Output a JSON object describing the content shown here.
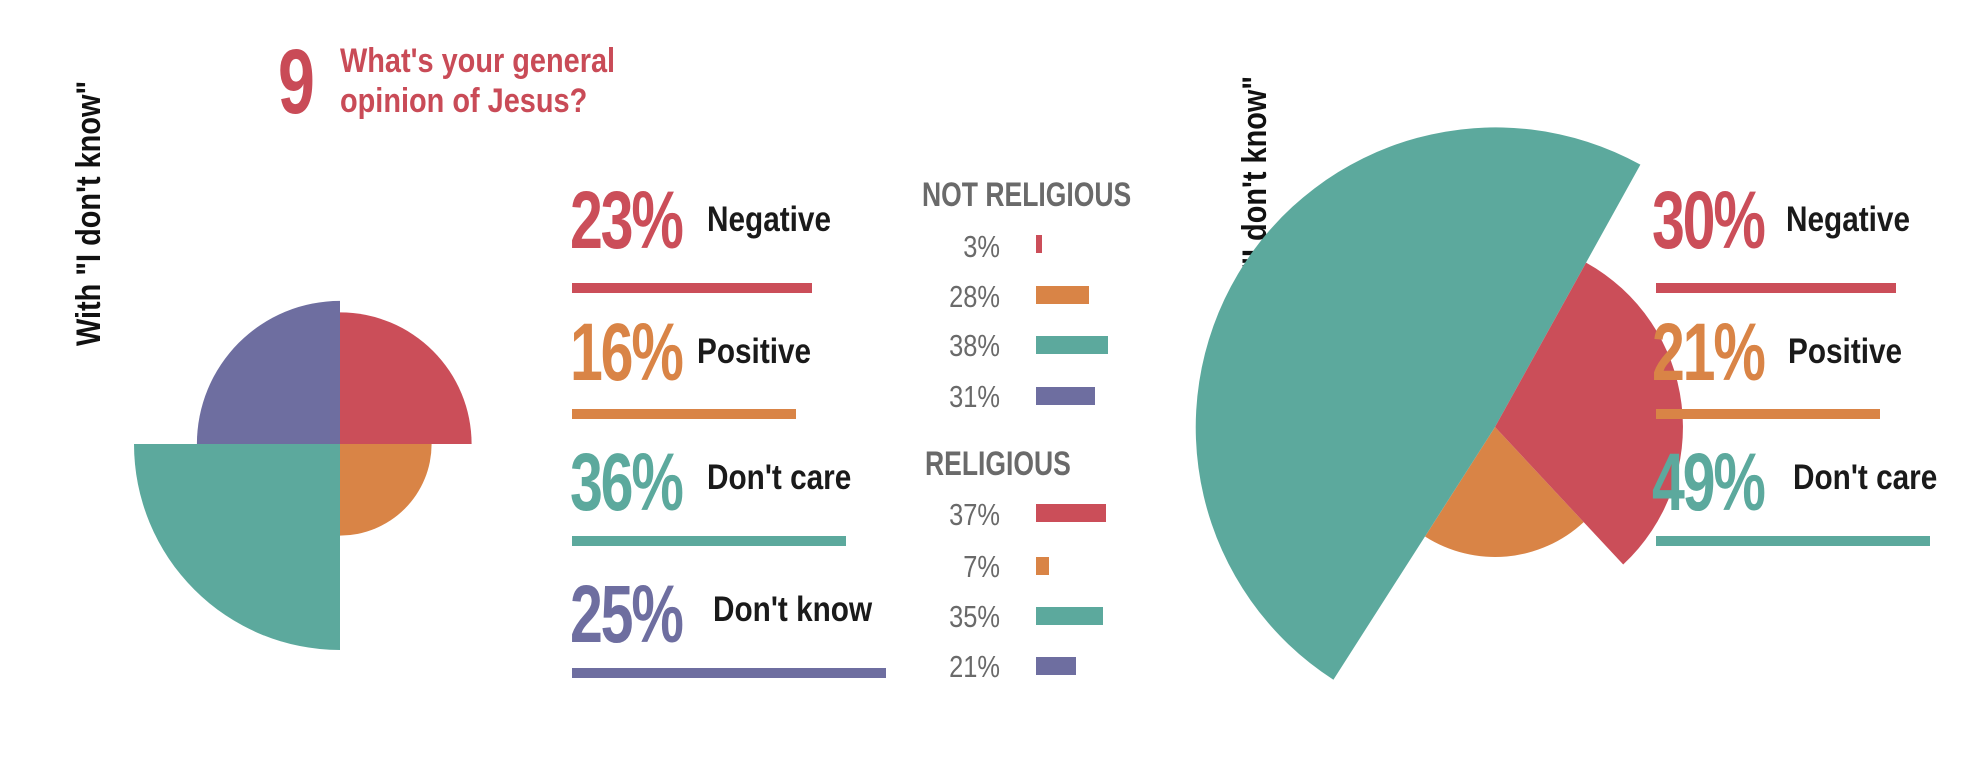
{
  "question": {
    "number": "9",
    "title_line1": "What's your general",
    "title_line2": "opinion of Jesus?"
  },
  "colors": {
    "negative": "#cb4e59",
    "positive": "#d98446",
    "dont_care": "#5ca99d",
    "dont_know": "#6e6ea0",
    "title": "#c94b57"
  },
  "chart_data": [
    {
      "type": "pie",
      "title": "With \"I don't know\"",
      "categories": [
        "Negative",
        "Positive",
        "Don't care",
        "Don't know"
      ],
      "values": [
        23,
        16,
        36,
        25
      ],
      "labels": [
        "23%",
        "16%",
        "36%",
        "25%"
      ]
    },
    {
      "type": "bar",
      "title": "NOT RELIGIOUS",
      "categories": [
        "Negative",
        "Positive",
        "Don't care",
        "Don't know"
      ],
      "values": [
        3,
        28,
        38,
        31
      ],
      "labels": [
        "3%",
        "28%",
        "38%",
        "31%"
      ]
    },
    {
      "type": "bar",
      "title": "RELIGIOUS",
      "categories": [
        "Negative",
        "Positive",
        "Don't care",
        "Don't know"
      ],
      "values": [
        37,
        7,
        35,
        21
      ],
      "labels": [
        "37%",
        "7%",
        "35%",
        "21%"
      ]
    },
    {
      "type": "pie",
      "title": "Without \"I don't know\"",
      "categories": [
        "Negative",
        "Positive",
        "Don't care"
      ],
      "values": [
        30,
        21,
        49
      ],
      "labels": [
        "30%",
        "21%",
        "49%"
      ]
    }
  ]
}
